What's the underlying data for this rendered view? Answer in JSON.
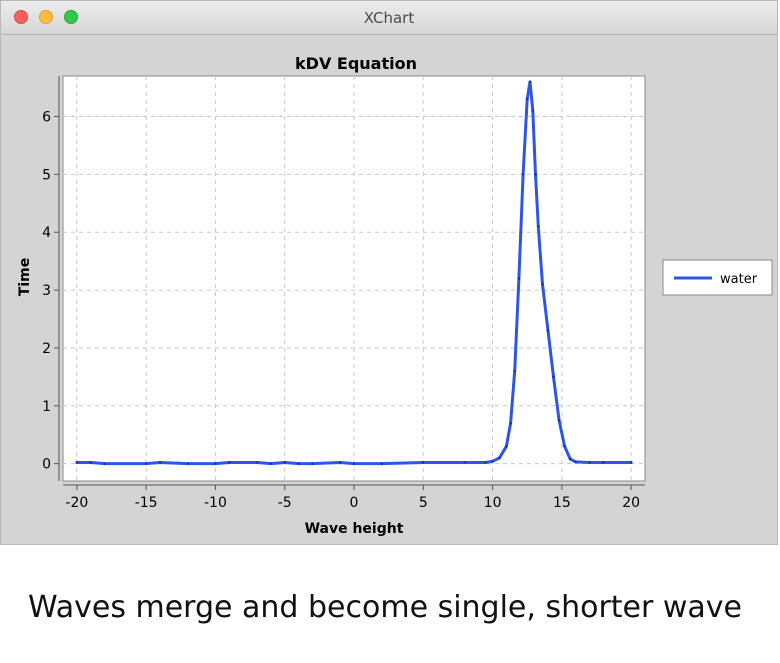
{
  "window": {
    "title": "XChart"
  },
  "chart_data": {
    "type": "line",
    "title": "kDV Equation",
    "xlabel": "Wave height",
    "ylabel": "Time",
    "xlim": [
      -21,
      21
    ],
    "ylim": [
      -0.3,
      6.7
    ],
    "xticks": [
      -20,
      -15,
      -10,
      -5,
      0,
      5,
      10,
      15,
      20
    ],
    "xtick_labels": [
      "-20",
      "-15",
      "-10",
      "-5",
      "0",
      "5",
      "10",
      "15",
      "20"
    ],
    "yticks": [
      0,
      1,
      2,
      3,
      4,
      5,
      6
    ],
    "ytick_labels": [
      "0",
      "1",
      "2",
      "3",
      "4",
      "5",
      "6"
    ],
    "grid": true,
    "legend_position": "right",
    "series": [
      {
        "name": "water",
        "color": "#2f55e4",
        "x": [
          -20,
          -19,
          -18,
          -15,
          -14,
          -12,
          -10,
          -9,
          -7,
          -6,
          -5,
          -4,
          -3,
          -1,
          0,
          2,
          5,
          8,
          9.5,
          10,
          10.5,
          11,
          11.3,
          11.6,
          11.9,
          12.2,
          12.5,
          12.7,
          12.9,
          13.1,
          13.3,
          13.6,
          14,
          14.4,
          14.8,
          15.2,
          15.6,
          16,
          17,
          18,
          20
        ],
        "values": [
          0.02,
          0.02,
          0.0,
          0.0,
          0.02,
          0.0,
          0.0,
          0.02,
          0.02,
          0.0,
          0.02,
          0.0,
          0.0,
          0.02,
          0.0,
          0.0,
          0.02,
          0.02,
          0.02,
          0.04,
          0.1,
          0.3,
          0.7,
          1.6,
          3.2,
          5.0,
          6.3,
          6.6,
          6.1,
          5.0,
          4.1,
          3.1,
          2.3,
          1.5,
          0.75,
          0.3,
          0.08,
          0.03,
          0.02,
          0.02,
          0.02
        ]
      }
    ]
  },
  "caption": "Waves merge and become single, shorter wave"
}
